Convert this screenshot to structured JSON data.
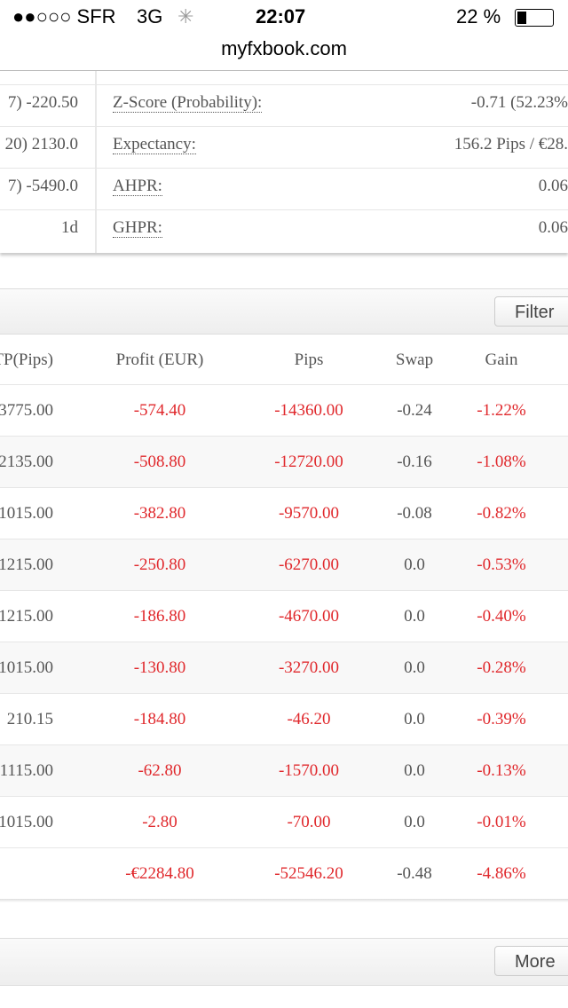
{
  "status_bar": {
    "carrier": "●●○○○ SFR",
    "network": "3G",
    "time": "22:07",
    "battery": "22 %"
  },
  "browser": {
    "url": "myfxbook.com"
  },
  "stats": {
    "rows": [
      {
        "left": "7) -220.50",
        "label": "Z-Score (Probability):",
        "value": "-0.71 (52.23%"
      },
      {
        "left": "20) 2130.0",
        "label": "Expectancy:",
        "value": "156.2 Pips / €28."
      },
      {
        "left": "7) -5490.0",
        "label": "AHPR:",
        "value": "0.06"
      },
      {
        "left": "1d",
        "label": "GHPR:",
        "value": "0.06"
      }
    ]
  },
  "filter_button": "Filter",
  "table": {
    "headers": [
      "TP(Pips)",
      "Profit (EUR)",
      "Pips",
      "Swap",
      "Gain"
    ],
    "rows": [
      [
        "3775.00",
        "-574.40",
        "-14360.00",
        "-0.24",
        "-1.22%"
      ],
      [
        "2135.00",
        "-508.80",
        "-12720.00",
        "-0.16",
        "-1.08%"
      ],
      [
        "1015.00",
        "-382.80",
        "-9570.00",
        "-0.08",
        "-0.82%"
      ],
      [
        "1215.00",
        "-250.80",
        "-6270.00",
        "0.0",
        "-0.53%"
      ],
      [
        "1215.00",
        "-186.80",
        "-4670.00",
        "0.0",
        "-0.40%"
      ],
      [
        "1015.00",
        "-130.80",
        "-3270.00",
        "0.0",
        "-0.28%"
      ],
      [
        "210.15",
        "-184.80",
        "-46.20",
        "0.0",
        "-0.39%"
      ],
      [
        "1115.00",
        "-62.80",
        "-1570.00",
        "0.0",
        "-0.13%"
      ],
      [
        "1015.00",
        "-2.80",
        "-70.00",
        "0.0",
        "-0.01%"
      ]
    ],
    "totals": {
      "profit": "-€2284.80",
      "pips": "-52546.20",
      "swap": "-0.48",
      "gain": "-4.86%"
    }
  },
  "more_button": "More"
}
